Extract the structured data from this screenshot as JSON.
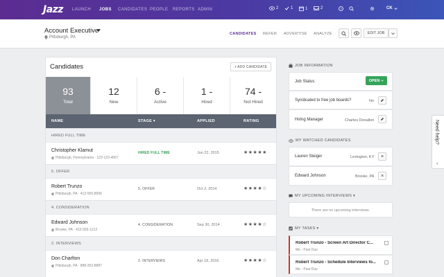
{
  "topbar": {
    "logo": "Jazz",
    "nav": [
      "LAUNCH",
      "JOBS",
      "CANDIDATES",
      "PEOPLE",
      "REPORTS",
      "ADMIN"
    ],
    "active_nav": "JOBS",
    "counters": {
      "views": "2",
      "checks": "1",
      "calendar": "1",
      "inbox": "2"
    },
    "user_initials": "CK"
  },
  "job": {
    "title": "Account Executive",
    "location": "Pittsburgh, PA",
    "tabs": [
      "CANDIDATES",
      "REFER",
      "ADVERTISE",
      "ANALYZE"
    ],
    "active_tab": "CANDIDATES",
    "edit_label": "EDIT JOB"
  },
  "candidates": {
    "title": "Candidates",
    "add_label": "+ ADD CANDIDATE",
    "stats": [
      {
        "num": "93",
        "label": "Total"
      },
      {
        "num": "12",
        "label": "New"
      },
      {
        "num": "6 -",
        "label": "Active"
      },
      {
        "num": "1 -",
        "label": "Hired"
      },
      {
        "num": "74 -",
        "label": "Not Hired"
      }
    ],
    "columns": {
      "name": "NAME",
      "stage": "STAGE ▾",
      "applied": "APPLIED",
      "rating": "RATING"
    },
    "groups": [
      {
        "label": "HIRED FULL TIME",
        "row": {
          "name": "Christopher Klamut",
          "meta": "Pittsburgh, Pennsylvania  ·  123-123-4567",
          "stage": "HIRED FULL TIME",
          "applied": "Jun 22, 2015",
          "rating": "★★★★★"
        }
      },
      {
        "label": "5. OFFER",
        "row": {
          "name": "Robert Trunzo",
          "meta": "Pittsburgh, PA  ·  412-555-8996",
          "stage": "5. OFFER",
          "applied": "Oct 2, 2014",
          "rating": "★★★★☆"
        }
      },
      {
        "label": "4. CONSIDERATION",
        "row": {
          "name": "Edward Johnson",
          "meta": "Brooke, PA  ·  412-555-1212",
          "stage": "4. CONSIDERATION",
          "applied": "Sep 30, 2014",
          "rating": "★★★★☆"
        }
      },
      {
        "label": "2. INTERVIEWS",
        "row": {
          "name": "Don Charlton",
          "meta": "Pittsburgh, PA  ·  888-353-8887",
          "stage": "2. INTERVIEWS",
          "applied": "Apr 18, 2016",
          "rating": "★★★★☆"
        }
      }
    ]
  },
  "job_info": {
    "header": "JOB INFORMATION",
    "status_label": "Job Status",
    "status_value": "OPEN",
    "syndicated_label": "Syndicated to free job boards?",
    "syndicated_value": "No",
    "manager_label": "Hiring Manager",
    "manager_value": "Charles Donalton"
  },
  "watched": {
    "header": "MY WATCHED CANDIDATES",
    "items": [
      {
        "name": "Lauren Steiger",
        "loc": "Lexington, KY"
      },
      {
        "name": "Edward Johnson",
        "loc": "Brooke, PA"
      }
    ]
  },
  "interviews": {
    "header": "MY UPCOMING INTERVIEWS ▾",
    "empty": "There are no upcoming interviews."
  },
  "tasks": {
    "header": "MY TASKS ▾",
    "items": [
      {
        "title": "Robert Trunzo - Screen Art Director C...",
        "sub": "Me - Past Due"
      },
      {
        "title": "Robert Trunzo - Schedule Interviews fo...",
        "sub": "Me - Past Due"
      }
    ]
  },
  "help": {
    "label": "Need help?",
    "chevron": "‹"
  }
}
